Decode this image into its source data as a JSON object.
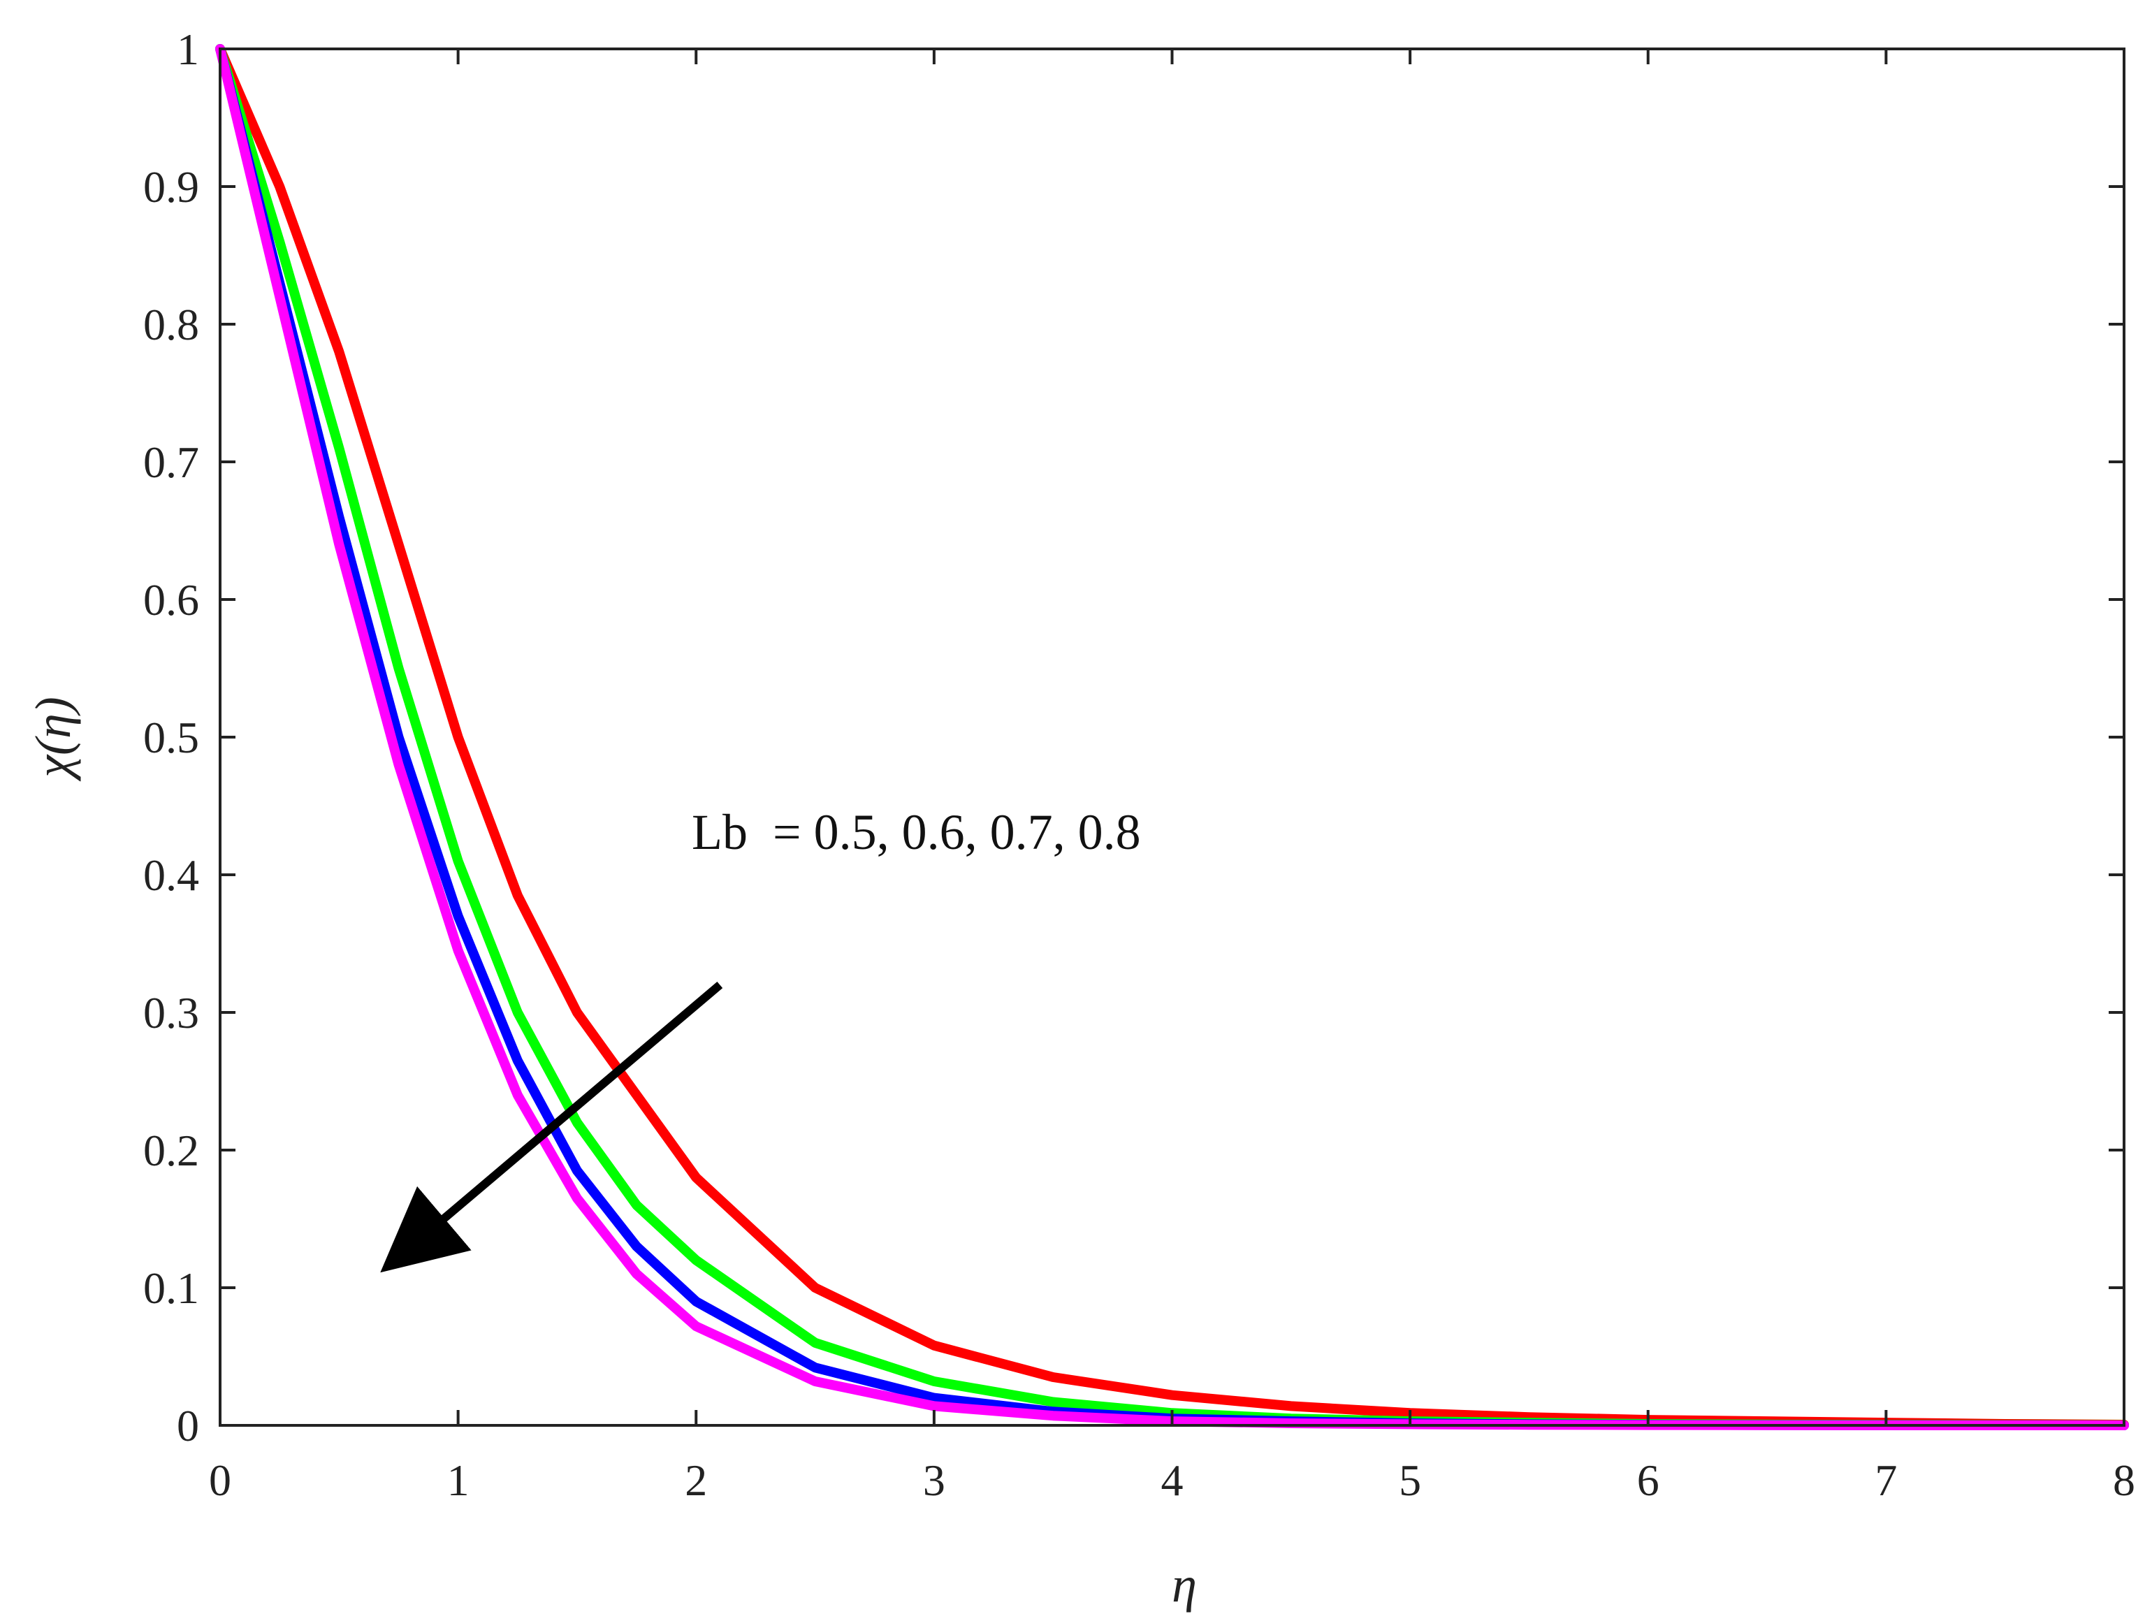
{
  "chart_data": {
    "type": "line",
    "xlabel": "η",
    "ylabel": "χ(η)",
    "xlim": [
      0,
      8
    ],
    "ylim": [
      0,
      1
    ],
    "xticks": [
      0,
      1,
      2,
      3,
      4,
      5,
      6,
      7,
      8
    ],
    "yticks": [
      0,
      0.1,
      0.2,
      0.3,
      0.4,
      0.5,
      0.6,
      0.7,
      0.8,
      0.9,
      1
    ],
    "grid": false,
    "annotation": "Lb  = 0.5, 0.6, 0.7, 0.8",
    "arrow": {
      "from": [
        2.1,
        0.32
      ],
      "to": [
        0.7,
        0.115
      ]
    },
    "x": [
      0,
      0.25,
      0.5,
      0.75,
      1,
      1.25,
      1.5,
      1.75,
      2,
      2.5,
      3,
      3.5,
      4,
      4.5,
      5,
      5.5,
      6,
      6.5,
      7,
      7.5,
      8
    ],
    "series": [
      {
        "color": "#ff0000",
        "values": [
          1,
          0.9,
          0.78,
          0.64,
          0.5,
          0.385,
          0.3,
          0.24,
          0.18,
          0.1,
          0.058,
          0.035,
          0.022,
          0.014,
          0.009,
          0.006,
          0.004,
          0.003,
          0.002,
          0.001,
          0.0005
        ]
      },
      {
        "color": "#00ff00",
        "values": [
          1,
          0.86,
          0.71,
          0.55,
          0.41,
          0.3,
          0.22,
          0.16,
          0.12,
          0.06,
          0.032,
          0.017,
          0.009,
          0.005,
          0.003,
          0.002,
          0.001,
          0.0006,
          0.0004,
          0.0002,
          0.0001
        ]
      },
      {
        "color": "#0000ff",
        "values": [
          1,
          0.83,
          0.66,
          0.5,
          0.37,
          0.265,
          0.185,
          0.13,
          0.09,
          0.042,
          0.02,
          0.01,
          0.005,
          0.003,
          0.0015,
          0.0008,
          0.0004,
          0.0002,
          0.0001,
          5e-05,
          0
        ]
      },
      {
        "color": "#ff00ff",
        "values": [
          1,
          0.82,
          0.64,
          0.48,
          0.345,
          0.24,
          0.165,
          0.11,
          0.072,
          0.032,
          0.014,
          0.007,
          0.003,
          0.0015,
          0.0008,
          0.0004,
          0.0002,
          0.0001,
          5e-05,
          0,
          0
        ]
      }
    ]
  }
}
